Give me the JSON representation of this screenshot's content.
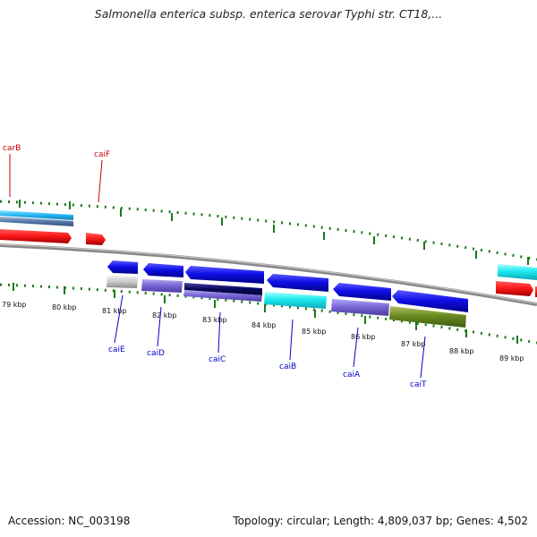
{
  "title": "Salmonella enterica subsp. enterica serovar Typhi str. CT18,...",
  "footer": {
    "accession": "Accession: NC_003198",
    "stats": "Topology: circular; Length: 4,809,037 bp; Genes: 4,502"
  },
  "scale_labels": [
    "79 kbp",
    "80 kbp",
    "81 kbp",
    "82 kbp",
    "83 kbp",
    "84 kbp",
    "85 kbp",
    "86 kbp",
    "87 kbp",
    "88 kbp",
    "89 kbp"
  ],
  "genes": {
    "carB": "carB",
    "caiF": "caiF",
    "caiE": "caiE",
    "caiD": "caiD",
    "caiC": "caiC",
    "caiB": "caiB",
    "caiA": "caiA",
    "caiT": "caiT"
  },
  "colors": {
    "forward_label": "#cc0000",
    "reverse_label": "#0000cc",
    "tick": "#1a7a1a",
    "backbone": "#888888"
  }
}
